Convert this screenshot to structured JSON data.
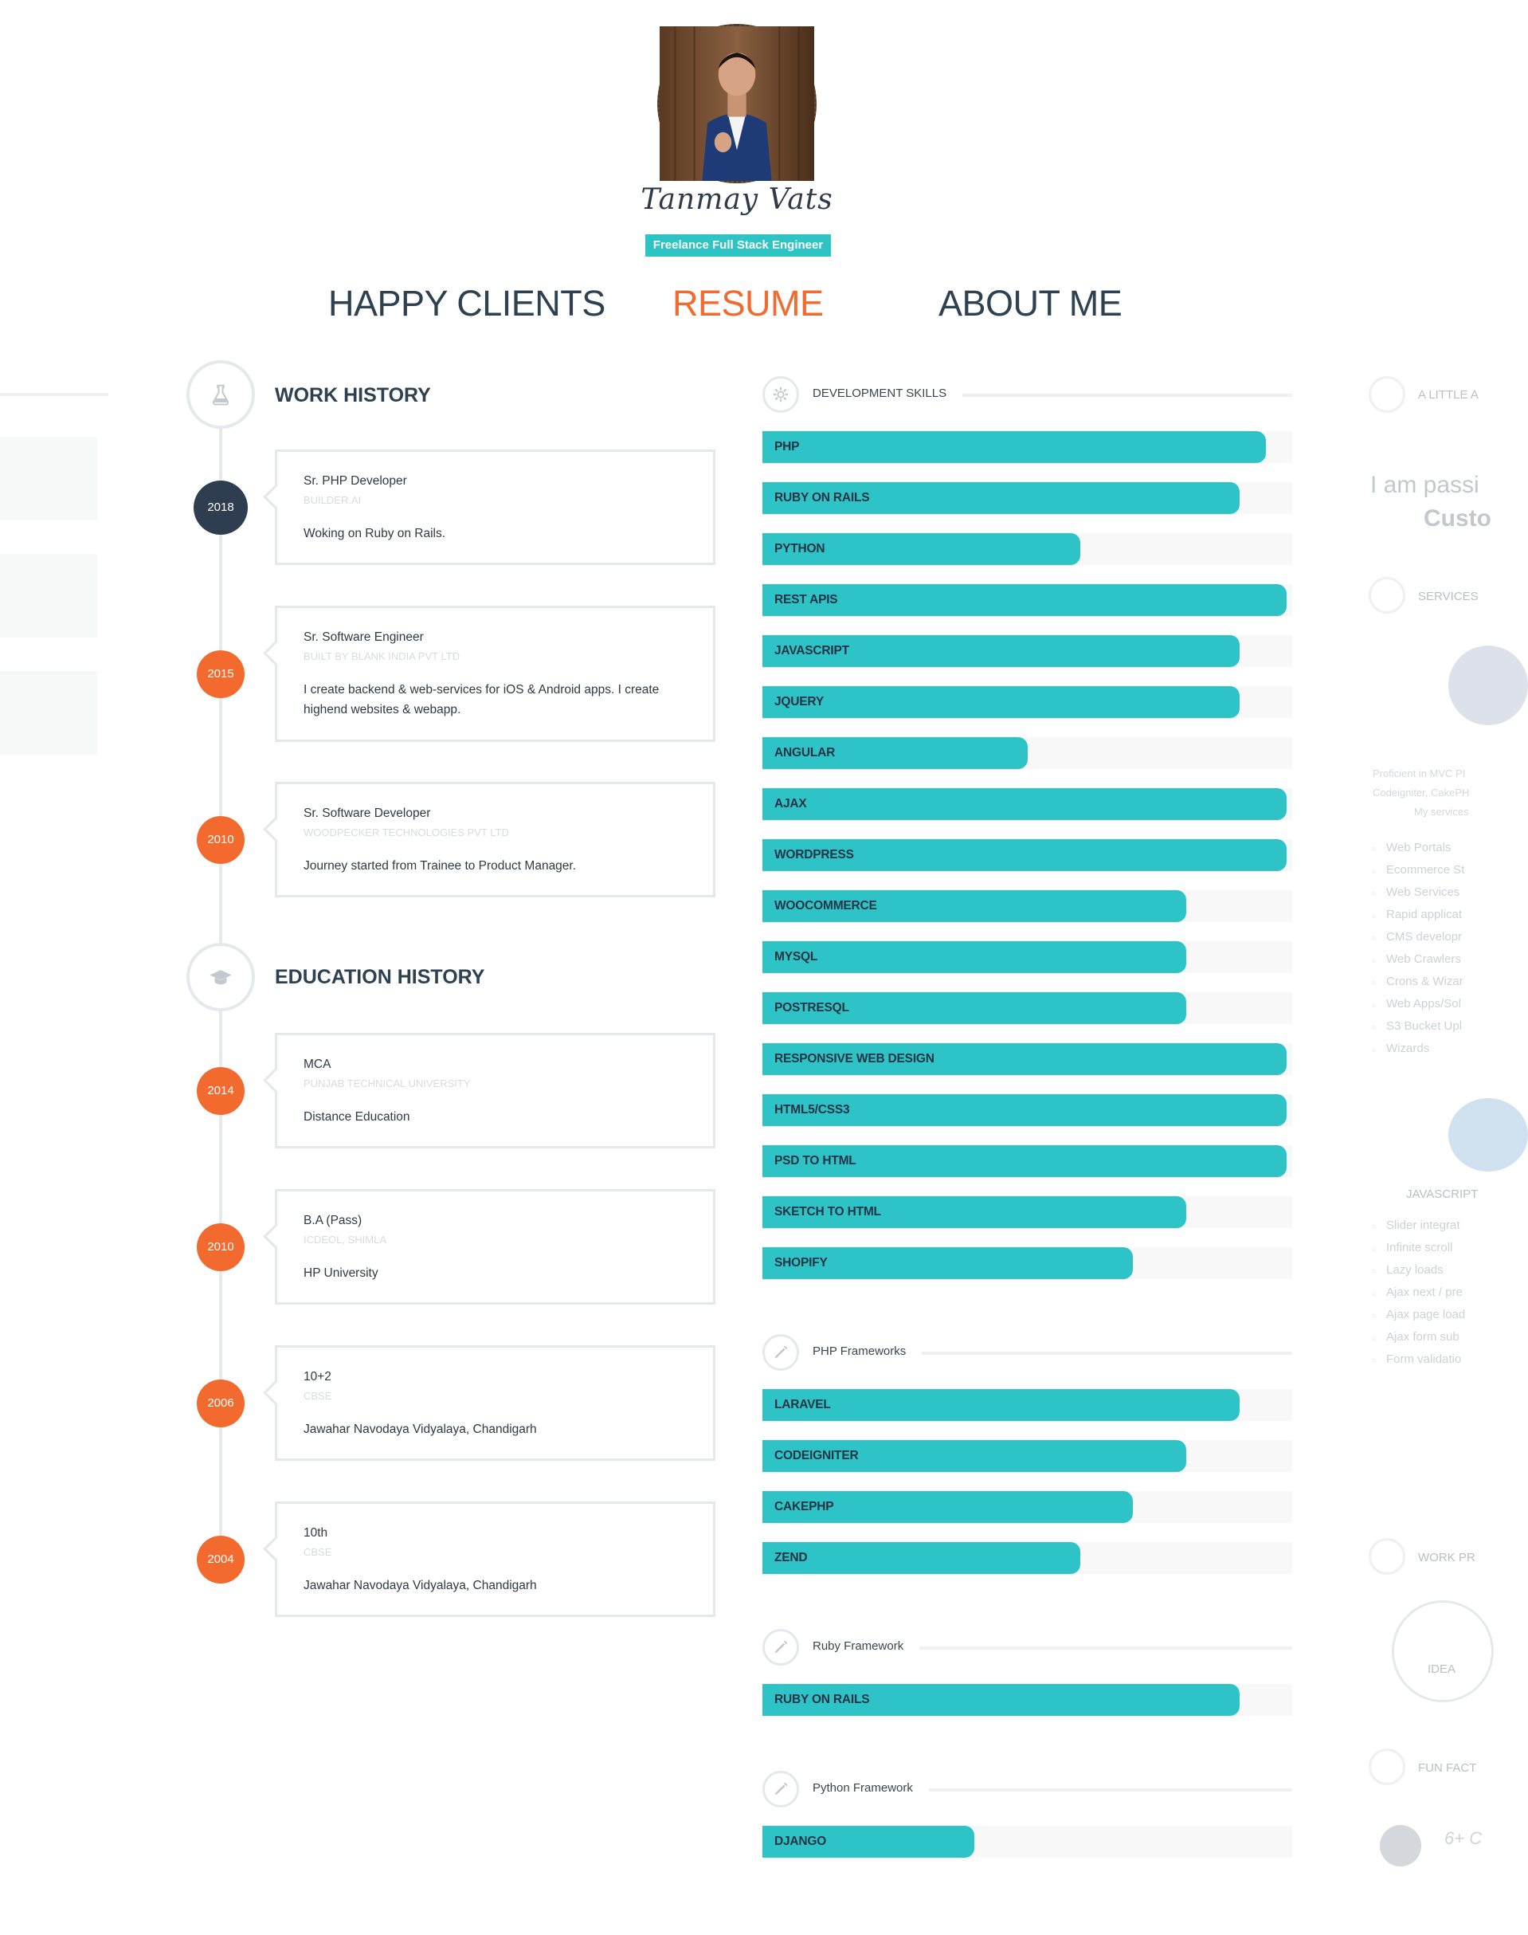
{
  "profile": {
    "name": "Tanmay Vats",
    "role": "Freelance Full Stack Engineer"
  },
  "nav": {
    "items": [
      "HAPPY CLIENTS",
      "RESUME",
      "ABOUT ME"
    ],
    "active": "RESUME"
  },
  "work": {
    "title": "WORK HISTORY",
    "icon": "flask-icon",
    "items": [
      {
        "year": "2018",
        "title": "Sr. PHP Developer",
        "org": "BUILDER.AI",
        "desc": "Woking on Ruby on Rails."
      },
      {
        "year": "2015",
        "title": "Sr. Software Engineer",
        "org": "BUILT BY BLANK INDIA PVT LTD",
        "desc": "I create backend & web-services for iOS & Android apps. I create highend websites & webapp."
      },
      {
        "year": "2010",
        "title": "Sr. Software Developer",
        "org": "WOODPECKER TECHNOLOGIES PVT LTD",
        "desc": "Journey started from Trainee to Product Manager."
      }
    ]
  },
  "education": {
    "title": "EDUCATION HISTORY",
    "icon": "graduation-cap-icon",
    "items": [
      {
        "year": "2014",
        "title": "MCA",
        "org": "PUNJAB TECHNICAL UNIVERSITY",
        "desc": "Distance Education"
      },
      {
        "year": "2010",
        "title": "B.A (Pass)",
        "org": "ICDEOL, SHIMLA",
        "desc": "HP University"
      },
      {
        "year": "2006",
        "title": "10+2",
        "org": "CBSE",
        "desc": "Jawahar Navodaya Vidyalaya, Chandigarh"
      },
      {
        "year": "2004",
        "title": "10th",
        "org": "CBSE",
        "desc": "Jawahar Navodaya Vidyalaya, Chandigarh"
      }
    ]
  },
  "skill_groups": [
    {
      "title": "DEVELOPMENT SKILLS",
      "icon": "gear-icon",
      "skills": [
        {
          "name": "PHP",
          "level": 0.95
        },
        {
          "name": "RUBY ON RAILS",
          "level": 0.9
        },
        {
          "name": "PYTHON",
          "level": 0.6
        },
        {
          "name": "REST APIS",
          "level": 0.99
        },
        {
          "name": "JAVASCRIPT",
          "level": 0.9
        },
        {
          "name": "JQUERY",
          "level": 0.9
        },
        {
          "name": "ANGULAR",
          "level": 0.5
        },
        {
          "name": "AJAX",
          "level": 0.99
        },
        {
          "name": "WORDPRESS",
          "level": 0.99
        },
        {
          "name": "WOOCOMMERCE",
          "level": 0.8
        },
        {
          "name": "MYSQL",
          "level": 0.8
        },
        {
          "name": "POSTRESQL",
          "level": 0.8
        },
        {
          "name": "RESPONSIVE WEB DESIGN",
          "level": 0.99
        },
        {
          "name": "HTML5/CSS3",
          "level": 0.99
        },
        {
          "name": "PSD TO HTML",
          "level": 0.99
        },
        {
          "name": "SKETCH TO HTML",
          "level": 0.8
        },
        {
          "name": "SHOPIFY",
          "level": 0.7
        }
      ]
    },
    {
      "title": "PHP Frameworks",
      "icon": "pencil-icon",
      "skills": [
        {
          "name": "LARAVEL",
          "level": 0.9
        },
        {
          "name": "CODEIGNITER",
          "level": 0.8
        },
        {
          "name": "CAKEPHP",
          "level": 0.7
        },
        {
          "name": "ZEND",
          "level": 0.6
        }
      ]
    },
    {
      "title": "Ruby Framework",
      "icon": "pencil-icon",
      "skills": [
        {
          "name": "RUBY ON RAILS",
          "level": 0.9
        }
      ]
    },
    {
      "title": "Python Framework",
      "icon": "pencil-icon",
      "skills": [
        {
          "name": "DJANGO",
          "level": 0.4
        }
      ]
    }
  ],
  "about_peek": {
    "heading": "A LITTLE A",
    "intro_line1": "I am passi",
    "intro_line2": "Custo",
    "services_label": "SERVICES",
    "php_desc": [
      "Proficient in MVC PI",
      "Codeigniter, CakePH",
      "My services"
    ],
    "php_list": [
      "Web Portals",
      "Ecommerce St",
      "Web Services",
      "Rapid applicat",
      "CMS developr",
      "Web Crawlers",
      "Crons & Wizar",
      "Web Apps/Sol",
      "S3 Bucket Upl",
      "Wizards"
    ],
    "js_label": "JAVASCRIPT",
    "js_list": [
      "Slider integrat",
      "Infinite scroll",
      "Lazy loads",
      "Ajax next / pre",
      "Ajax page load",
      "Ajax form sub",
      "Form validatio"
    ],
    "work_label": "WORK PR",
    "idea_label": "IDEA",
    "fun_label": "FUN FACT",
    "fun_value": "6+ C"
  },
  "colors": {
    "accent": "#2ec4c7",
    "orange": "#f26a2e",
    "dark": "#2e3e50"
  }
}
